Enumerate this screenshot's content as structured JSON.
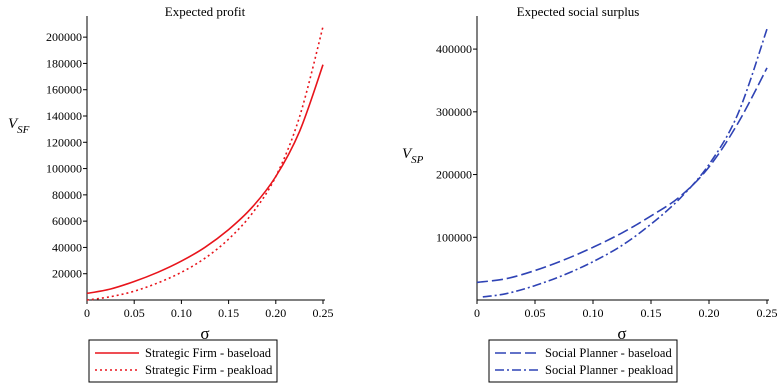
{
  "chart_data": [
    {
      "type": "line",
      "title": "Expected profit",
      "xlabel": "σ",
      "ylabel_main": "V",
      "ylabel_sub": "SF",
      "xlim": [
        0,
        0.25
      ],
      "ylim": [
        0,
        210000
      ],
      "xticks": [
        "0",
        "0.05",
        "0.10",
        "0.15",
        "0.20",
        "0.25"
      ],
      "yticks": [
        "20000",
        "40000",
        "60000",
        "80000",
        "100000",
        "120000",
        "140000",
        "160000",
        "180000",
        "200000"
      ],
      "series": [
        {
          "name": "Strategic Firm - baseload",
          "color": "#e8141b",
          "dash": "solid",
          "x": [
            0,
            0.025,
            0.05,
            0.075,
            0.1,
            0.125,
            0.15,
            0.175,
            0.2,
            0.225,
            0.25
          ],
          "y": [
            5000,
            8400,
            14100,
            21100,
            29600,
            40100,
            53600,
            70600,
            94000,
            128000,
            179000
          ]
        },
        {
          "name": "Strategic Firm - peakload",
          "color": "#e8141b",
          "dash": "dotted",
          "x": [
            0,
            0.025,
            0.05,
            0.075,
            0.1,
            0.125,
            0.15,
            0.175,
            0.2,
            0.225,
            0.25
          ],
          "y": [
            0,
            2500,
            6700,
            13000,
            21100,
            31800,
            46300,
            65900,
            94000,
            139000,
            208000
          ]
        }
      ]
    },
    {
      "type": "line",
      "title": "Expected social surplus",
      "xlabel": "σ",
      "ylabel_main": "V",
      "ylabel_sub": "SP",
      "xlim": [
        0,
        0.25
      ],
      "ylim": [
        0,
        440000
      ],
      "xticks": [
        "0",
        "0.05",
        "0.10",
        "0.15",
        "0.20",
        "0.25"
      ],
      "yticks": [
        "100000",
        "200000",
        "300000",
        "400000"
      ],
      "series": [
        {
          "name": "Social Planner - baseload",
          "color": "#2f43b5",
          "dash": "dashed",
          "x": [
            0,
            0.025,
            0.05,
            0.075,
            0.1,
            0.125,
            0.15,
            0.175,
            0.2,
            0.225,
            0.25
          ],
          "y": [
            28000,
            34000,
            47000,
            64000,
            84000,
            107000,
            134000,
            165000,
            212000,
            282000,
            370000
          ]
        },
        {
          "name": "Social Planner - peakload",
          "color": "#2f43b5",
          "dash": "dashdot",
          "x": [
            0.005,
            0.025,
            0.05,
            0.075,
            0.1,
            0.125,
            0.15,
            0.175,
            0.2,
            0.225,
            0.25
          ],
          "y": [
            5000,
            10000,
            23000,
            40000,
            61000,
            87000,
            121000,
            162000,
            216000,
            297000,
            432000
          ]
        }
      ]
    }
  ]
}
